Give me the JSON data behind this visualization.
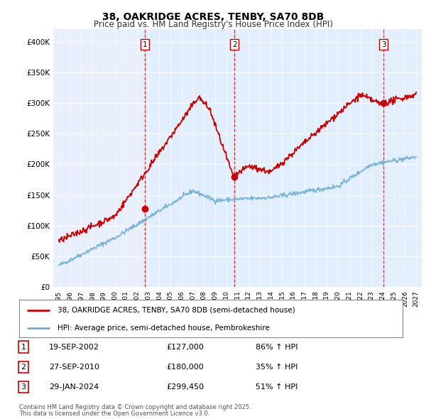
{
  "title_line1": "38, OAKRIDGE ACRES, TENBY, SA70 8DB",
  "title_line2": "Price paid vs. HM Land Registry's House Price Index (HPI)",
  "ylim": [
    0,
    420000
  ],
  "yticks": [
    0,
    50000,
    100000,
    150000,
    200000,
    250000,
    300000,
    350000,
    400000
  ],
  "ytick_labels": [
    "£0",
    "£50K",
    "£100K",
    "£150K",
    "£200K",
    "£250K",
    "£300K",
    "£350K",
    "£400K"
  ],
  "xlim_start": 1994.5,
  "xlim_end": 2027.5,
  "purchases": [
    {
      "num": 1,
      "date": "19-SEP-2002",
      "price": 127000,
      "year": 2002.72,
      "hpi_pct": "86%",
      "label": "1"
    },
    {
      "num": 2,
      "date": "27-SEP-2010",
      "price": 180000,
      "year": 2010.74,
      "hpi_pct": "35%",
      "label": "2"
    },
    {
      "num": 3,
      "date": "29-JAN-2024",
      "price": 299450,
      "year": 2024.08,
      "hpi_pct": "51%",
      "label": "3"
    }
  ],
  "hpi_color": "#6baed6",
  "price_color": "#cc0000",
  "vline_color": "#cc0000",
  "shade_color": "#ddeeff",
  "legend_label_price": "38, OAKRIDGE ACRES, TENBY, SA70 8DB (semi-detached house)",
  "legend_label_hpi": "HPI: Average price, semi-detached house, Pembrokeshire",
  "footer1": "Contains HM Land Registry data © Crown copyright and database right 2025.",
  "footer2": "This data is licensed under the Open Government Licence v3.0.",
  "bg_color": "#ffffff",
  "plot_bg_color": "#e8f0ff"
}
